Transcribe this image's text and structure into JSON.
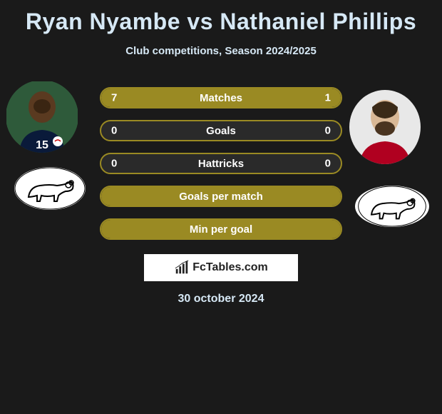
{
  "title": "Ryan Nyambe vs Nathaniel Phillips",
  "subtitle": "Club competitions, Season 2024/2025",
  "date": "30 october 2024",
  "brand": "FcTables.com",
  "colors": {
    "olive_fill": "#9a8a23",
    "olive_border": "#9a8a23",
    "row_bg_dark": "#2a2a2a",
    "text_light": "#d6e8f5",
    "background": "#1a1a1a",
    "photo_left_bg": "#2e5a3a",
    "photo_right_bg": "#e8e8e8",
    "crest_bg": "#ffffff"
  },
  "stats": [
    {
      "label": "Matches",
      "left_val": "7",
      "right_val": "1",
      "left_pct": 80,
      "right_pct": 20
    },
    {
      "label": "Goals",
      "left_val": "0",
      "right_val": "0",
      "left_pct": 0,
      "right_pct": 0
    },
    {
      "label": "Hattricks",
      "left_val": "0",
      "right_val": "0",
      "left_pct": 0,
      "right_pct": 0
    },
    {
      "label": "Goals per match",
      "left_val": "",
      "right_val": "",
      "left_pct": 100,
      "right_pct": 0
    },
    {
      "label": "Min per goal",
      "left_val": "",
      "right_val": "",
      "left_pct": 100,
      "right_pct": 0
    }
  ],
  "players": {
    "left": {
      "name": "Ryan Nyambe",
      "kit_number": "15"
    },
    "right": {
      "name": "Nathaniel Phillips"
    }
  },
  "clubs": {
    "left": {
      "name": "Derby County",
      "crest": "ram"
    },
    "right": {
      "name": "Derby County",
      "crest": "ram"
    }
  }
}
